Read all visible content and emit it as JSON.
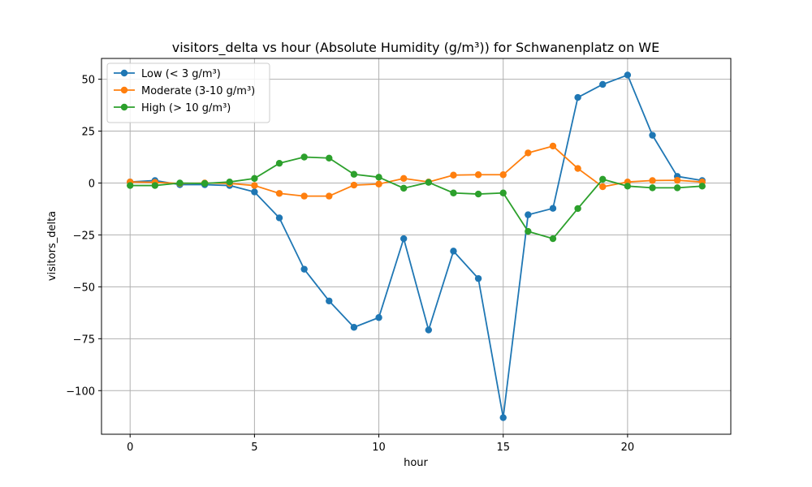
{
  "chart_data": {
    "type": "line",
    "title": "visitors_delta vs hour (Absolute Humidity (g/m³)) for Schwanenplatz on WE",
    "xlabel": "hour",
    "ylabel": "visitors_delta",
    "xlim": [
      -1.15,
      24.15
    ],
    "ylim": [
      -121,
      60
    ],
    "xticks": [
      0,
      5,
      10,
      15,
      20
    ],
    "yticks": [
      50,
      25,
      0,
      -25,
      -50,
      -75,
      -100
    ],
    "ytick_labels": [
      "50",
      "25",
      "0",
      "−25",
      "−50",
      "−75",
      "−100"
    ],
    "grid": true,
    "legend_position": "top-left",
    "x": [
      0,
      1,
      2,
      3,
      4,
      5,
      6,
      7,
      8,
      9,
      10,
      11,
      12,
      13,
      14,
      15,
      16,
      17,
      18,
      19,
      20,
      21,
      22,
      23
    ],
    "series": [
      {
        "name": "Low (< 3 g/m³)",
        "color": "#1f77b4",
        "values": [
          0.5,
          1.2,
          -0.8,
          -0.8,
          -1.2,
          -4.3,
          -16.8,
          -41.5,
          -56.8,
          -69.5,
          -64.8,
          -26.8,
          -70.8,
          -32.8,
          -46.0,
          -113.0,
          -15.3,
          -12.2,
          41.2,
          47.5,
          52.0,
          23.0,
          3.2,
          1.2
        ]
      },
      {
        "name": "Moderate (3-10 g/m³)",
        "color": "#ff7f0e",
        "values": [
          0.5,
          0.3,
          -0.2,
          0.0,
          -0.2,
          -1.2,
          -5.0,
          -6.3,
          -6.3,
          -1.0,
          -0.5,
          2.2,
          0.5,
          3.8,
          4.0,
          4.0,
          14.5,
          17.8,
          7.0,
          -1.8,
          0.5,
          1.2,
          1.3,
          0.5
        ]
      },
      {
        "name": "High (> 10 g/m³)",
        "color": "#2ca02c",
        "values": [
          -1.2,
          -1.2,
          0.0,
          -0.2,
          0.5,
          2.2,
          9.5,
          12.5,
          12.0,
          4.2,
          2.8,
          -2.5,
          0.3,
          -4.8,
          -5.3,
          -4.8,
          -23.3,
          -26.8,
          -12.3,
          1.8,
          -1.5,
          -2.3,
          -2.3,
          -1.5
        ]
      }
    ]
  }
}
